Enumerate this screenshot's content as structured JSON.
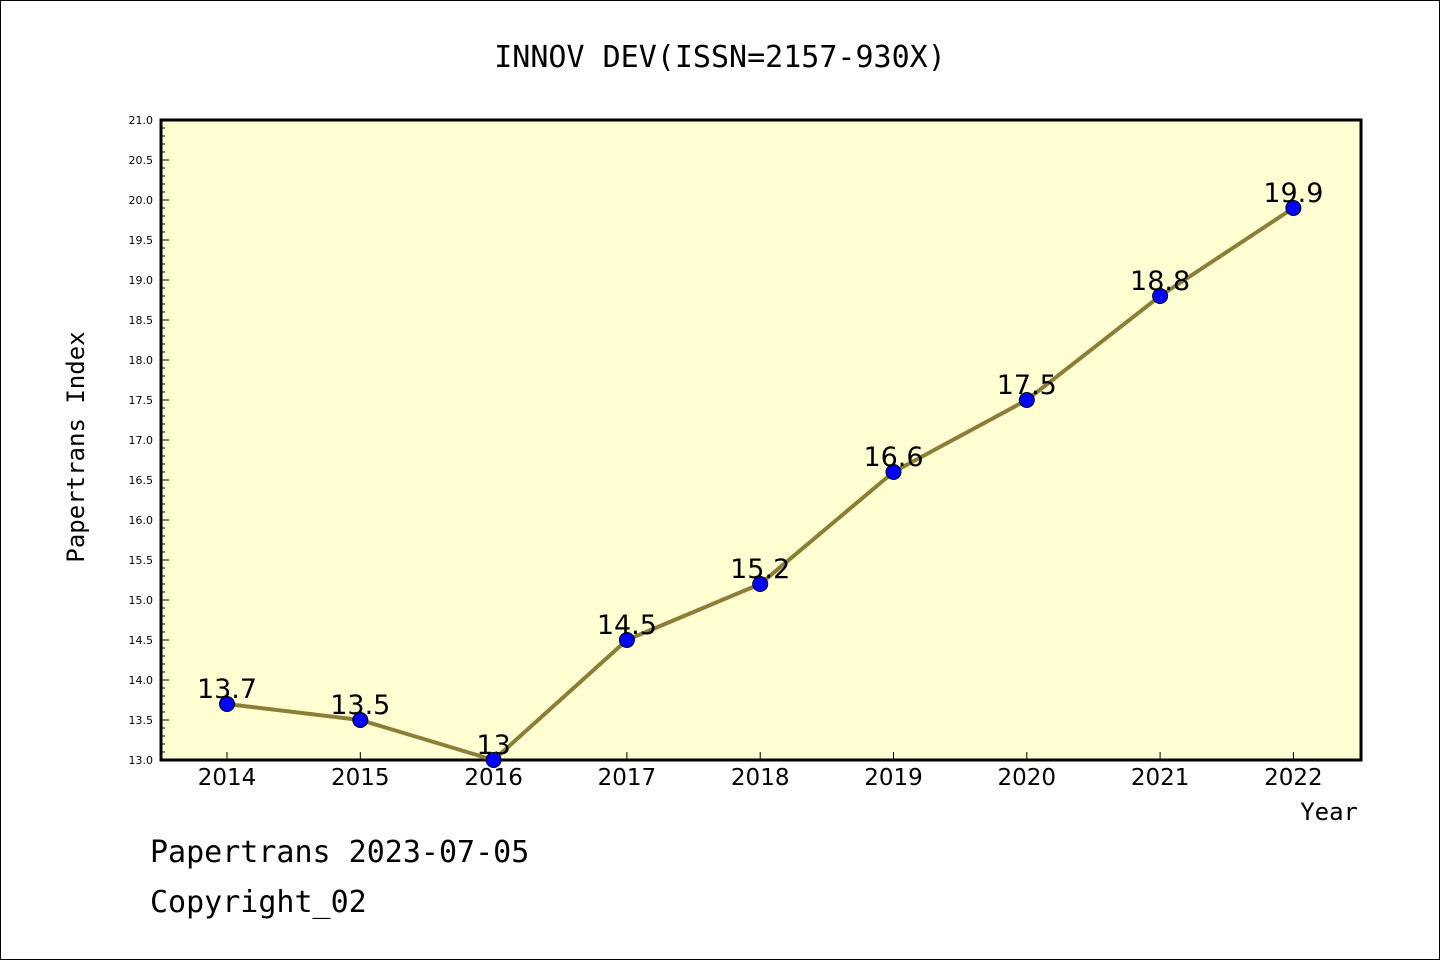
{
  "chart_data": {
    "type": "line",
    "title": "INNOV DEV(ISSN=2157-930X)",
    "xlabel": "Year",
    "ylabel": "Papertrans Index",
    "categories": [
      "2014",
      "2015",
      "2016",
      "2017",
      "2018",
      "2019",
      "2020",
      "2021",
      "2022"
    ],
    "values": [
      13.7,
      13.5,
      13.0,
      14.5,
      15.2,
      16.6,
      17.5,
      18.8,
      19.9
    ],
    "data_labels": [
      "13.7",
      "13.5",
      "13",
      "14.5",
      "15.2",
      "16.6",
      "17.5",
      "18.8",
      "19.9"
    ],
    "ylim": [
      13.0,
      21.0
    ],
    "yticks": [
      "13.0",
      "13.5",
      "14.0",
      "14.5",
      "15.0",
      "15.5",
      "16.0",
      "16.5",
      "17.0",
      "17.5",
      "18.0",
      "18.5",
      "19.0",
      "19.5",
      "20.0",
      "20.5",
      "21.0"
    ],
    "grid": false,
    "legend": "none",
    "colors": {
      "plot_background": "#ffffd2",
      "line": "#8b7e37",
      "marker": "#0000ff",
      "axis": "#000000"
    }
  },
  "footer": {
    "line1": "Papertrans 2023-07-05",
    "line2": "Copyright_02"
  }
}
